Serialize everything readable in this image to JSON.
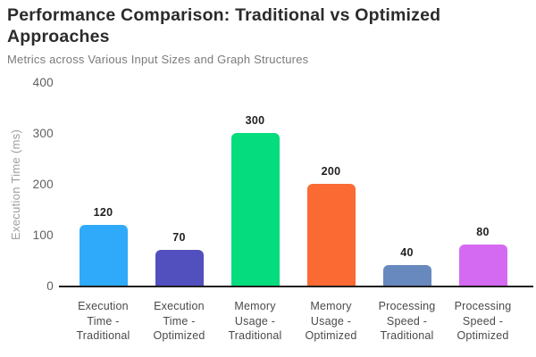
{
  "header": {
    "title": "Performance Comparison: Traditional vs Optimized Approaches",
    "title_line1": "Performance Comparison: Traditional vs Optimized",
    "title_line2": "Approaches",
    "subtitle": "Metrics across Various Input Sizes and Graph Structures"
  },
  "chart_data": {
    "type": "bar",
    "title": "Performance Comparison: Traditional vs Optimized Approaches",
    "subtitle": "Metrics across Various Input Sizes and Graph Structures",
    "xlabel": "",
    "ylabel": "Execution Time (ms)",
    "ylim": [
      0,
      400
    ],
    "yticks": [
      400,
      300,
      200,
      100,
      0
    ],
    "grid": false,
    "legend_position": "none",
    "categories": [
      "Execution Time - Traditional",
      "Execution Time - Optimized",
      "Memory Usage - Traditional",
      "Memory Usage - Optimized",
      "Processing Speed - Traditional",
      "Processing Speed - Optimized"
    ],
    "category_lines": [
      [
        "Execution",
        "Time -",
        "Traditional"
      ],
      [
        "Execution",
        "Time -",
        "Optimized"
      ],
      [
        "Memory",
        "Usage -",
        "Traditional"
      ],
      [
        "Memory",
        "Usage -",
        "Optimized"
      ],
      [
        "Processing",
        "Speed -",
        "Traditional"
      ],
      [
        "Processing",
        "Speed -",
        "Optimized"
      ]
    ],
    "values": [
      120,
      70,
      300,
      200,
      40,
      80
    ],
    "value_labels": [
      "120",
      "70",
      "300",
      "200",
      "40",
      "80"
    ],
    "bar_colors": [
      "#2faafb",
      "#5150be",
      "#04dc7e",
      "#fb6a33",
      "#6789be",
      "#d56af2"
    ]
  },
  "colors": {
    "background": "#ffffff",
    "title_text": "#2b2b2b",
    "subtitle_text": "#7b7b7b",
    "tick_text": "#5f5f5f",
    "axis_label_text": "#9e9e9e",
    "category_text": "#4a4a4a",
    "value_label_text": "#1f1f1f",
    "axis_line": "#1f1f1f"
  }
}
